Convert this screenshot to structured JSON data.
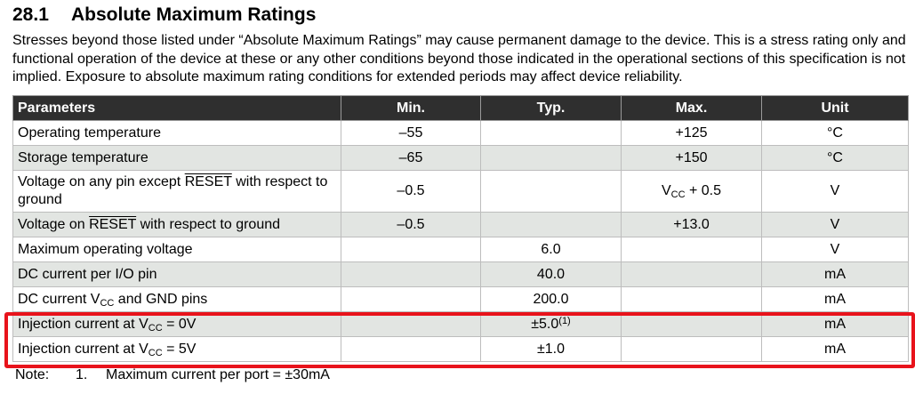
{
  "section": {
    "number": "28.1",
    "title": "Absolute Maximum Ratings",
    "intro": "Stresses beyond those listed under “Absolute Maximum Ratings” may cause permanent damage to the device. This is a stress rating only and functional operation of the device at these or any other conditions beyond those indicated in the operational sections of this specification is not implied. Exposure to absolute maximum rating conditions for extended periods may affect device reliability."
  },
  "table": {
    "headers": {
      "parameters": "Parameters",
      "min": "Min.",
      "typ": "Typ.",
      "max": "Max.",
      "unit": "Unit"
    },
    "rows": [
      {
        "param": "Operating temperature",
        "min": "–55",
        "typ": "",
        "max": "+125",
        "unit": "°C"
      },
      {
        "param": "Storage temperature",
        "min": "–65",
        "typ": "",
        "max": "+150",
        "unit": "°C"
      },
      {
        "param_pre": "Voltage on any pin except ",
        "param_ovl": "RESET",
        "param_post": " with respect to ground",
        "min": "–0.5",
        "typ": "",
        "max_main": "V",
        "max_sub": "CC",
        "max_post": " + 0.5",
        "unit": "V"
      },
      {
        "param_pre": "Voltage on ",
        "param_ovl": "RESET",
        "param_post": " with respect to ground",
        "min": "–0.5",
        "typ": "",
        "max": "+13.0",
        "unit": "V"
      },
      {
        "param": "Maximum operating voltage",
        "min": "",
        "typ": "6.0",
        "max": "",
        "unit": "V"
      },
      {
        "param": "DC current per I/O pin",
        "min": "",
        "typ": "40.0",
        "max": "",
        "unit": "mA"
      },
      {
        "param_pre": "DC current V",
        "param_sub": "CC",
        "param_post": " and GND pins",
        "min": "",
        "typ": "200.0",
        "max": "",
        "unit": "mA"
      },
      {
        "param_pre": "Injection current at V",
        "param_sub": "CC",
        "param_post": " = 0V",
        "min": "",
        "typ_main": "±5.0",
        "typ_sup": "(1)",
        "max": "",
        "unit": "mA"
      },
      {
        "param_pre": "Injection current at V",
        "param_sub": "CC",
        "param_post": " = 5V",
        "min": "",
        "typ": "±1.0",
        "max": "",
        "unit": "mA"
      }
    ]
  },
  "note": {
    "label": "Note:",
    "number": "1.",
    "text": "Maximum current per port = ±30mA"
  },
  "colors": {
    "header_bg": "#2f2f2f",
    "alt_row_bg": "#e2e5e2",
    "highlight": "#e8131b"
  }
}
